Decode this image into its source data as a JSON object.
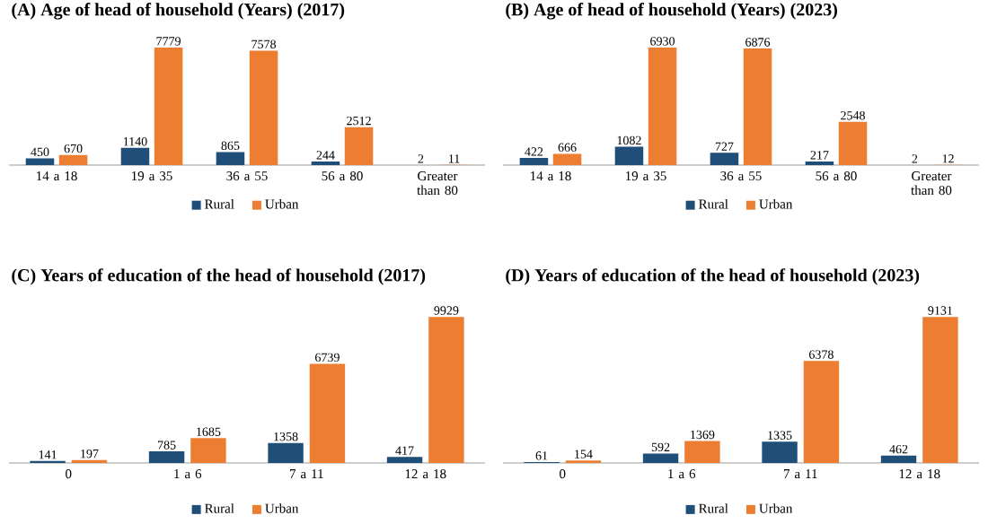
{
  "chart_data": [
    {
      "type": "bar",
      "title": "(A) Age of head of household (Years) (2017)",
      "categories": [
        "14 a 18",
        "19 a 35",
        "36 a 55",
        "56 a 80",
        "Greater than 80"
      ],
      "series": [
        {
          "name": "Rural",
          "color": "#1f4e79",
          "values": [
            450,
            1140,
            865,
            244,
            2
          ]
        },
        {
          "name": "Urban",
          "color": "#ed7d31",
          "values": [
            670,
            7779,
            7578,
            2512,
            11
          ]
        }
      ],
      "data_labels": true,
      "legend": "bottom"
    },
    {
      "type": "bar",
      "title": "(B) Age of head of household (Years) (2023)",
      "categories": [
        "14 a 18",
        "19 a 35",
        "36 a 55",
        "56 a 80",
        "Greater than 80"
      ],
      "series": [
        {
          "name": "Rural",
          "color": "#1f4e79",
          "values": [
            422,
            1082,
            727,
            217,
            2
          ]
        },
        {
          "name": "Urban",
          "color": "#ed7d31",
          "values": [
            666,
            6930,
            6876,
            2548,
            12
          ]
        }
      ],
      "data_labels": true,
      "legend": "bottom"
    },
    {
      "type": "bar",
      "title": "(C) Years of education of the head of household (2017)",
      "categories": [
        "0",
        "1 a 6",
        "7 a 11",
        "12 a 18"
      ],
      "series": [
        {
          "name": "Rural",
          "color": "#1f4e79",
          "values": [
            141,
            785,
            1358,
            417
          ]
        },
        {
          "name": "Urban",
          "color": "#ed7d31",
          "values": [
            197,
            1685,
            6739,
            9929
          ]
        }
      ],
      "data_labels": true,
      "legend": "bottom"
    },
    {
      "type": "bar",
      "title": "(D) Years of education of the head of household (2023)",
      "categories": [
        "0",
        "1 a 6",
        "7 a 11",
        "12 a 18"
      ],
      "series": [
        {
          "name": "Rural",
          "color": "#1f4e79",
          "values": [
            61,
            592,
            1335,
            462
          ]
        },
        {
          "name": "Urban",
          "color": "#ed7d31",
          "values": [
            154,
            1369,
            6378,
            9131
          ]
        }
      ],
      "data_labels": true,
      "legend": "bottom"
    }
  ]
}
